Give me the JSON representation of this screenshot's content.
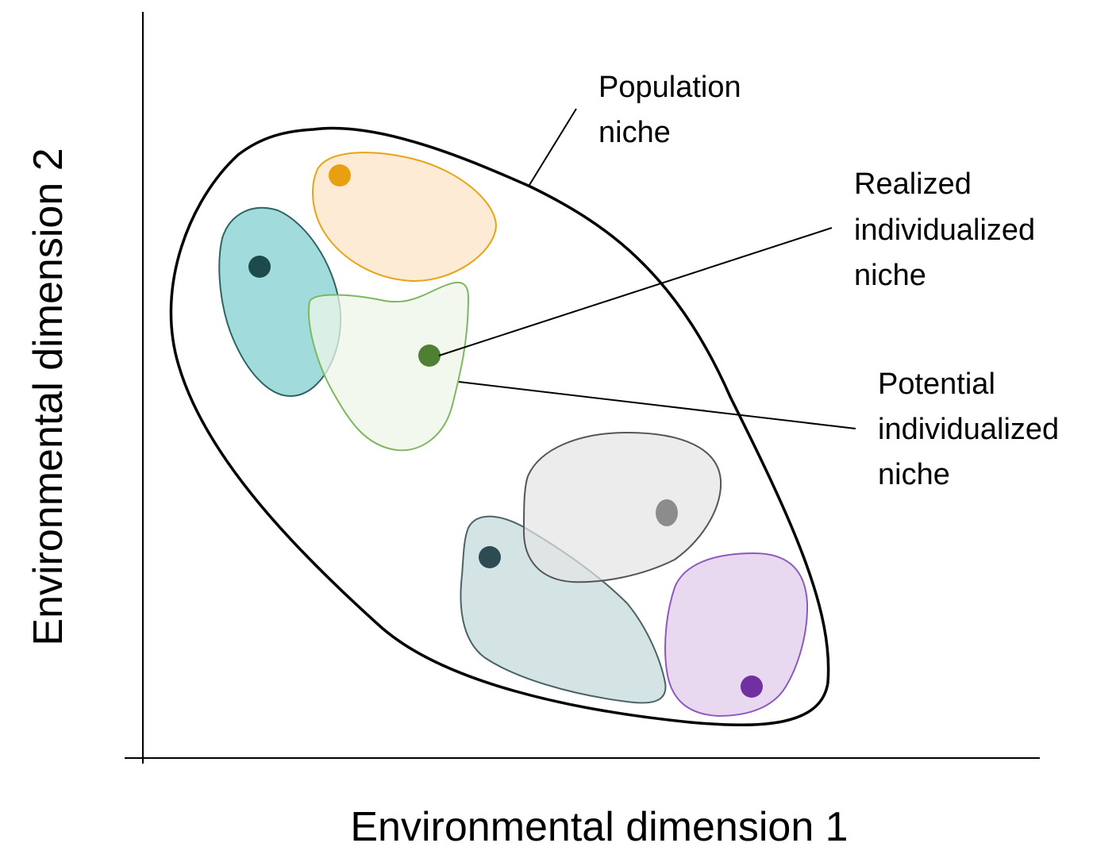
{
  "axes": {
    "x_label": "Environmental dimension 1",
    "y_label": "Environmental dimension 2"
  },
  "callouts": {
    "population_niche": [
      "Population",
      "niche"
    ],
    "realized_niche": [
      "Realized",
      "individualized",
      "niche"
    ],
    "potential_niche": [
      "Potential",
      "individualized",
      "niche"
    ]
  },
  "niches": [
    {
      "name": "orange",
      "fill": "#fdebd6",
      "stroke": "#e8a317",
      "dot": "#e8a010"
    },
    {
      "name": "teal",
      "fill": "#9cd9d9",
      "stroke": "#2f6464",
      "dot": "#1d4a4a"
    },
    {
      "name": "green",
      "fill": "#eef6e8",
      "stroke": "#7cb860",
      "dot": "#4f7f32"
    },
    {
      "name": "gray",
      "fill": "#e4e4e6",
      "stroke": "#555555",
      "dot": "#8c8c8c"
    },
    {
      "name": "slate",
      "fill": "#cfe1e2",
      "stroke": "#4a6466",
      "dot": "#2e4a52"
    },
    {
      "name": "purple",
      "fill": "#e8d9f1",
      "stroke": "#8e58c0",
      "dot": "#7030a0"
    }
  ]
}
